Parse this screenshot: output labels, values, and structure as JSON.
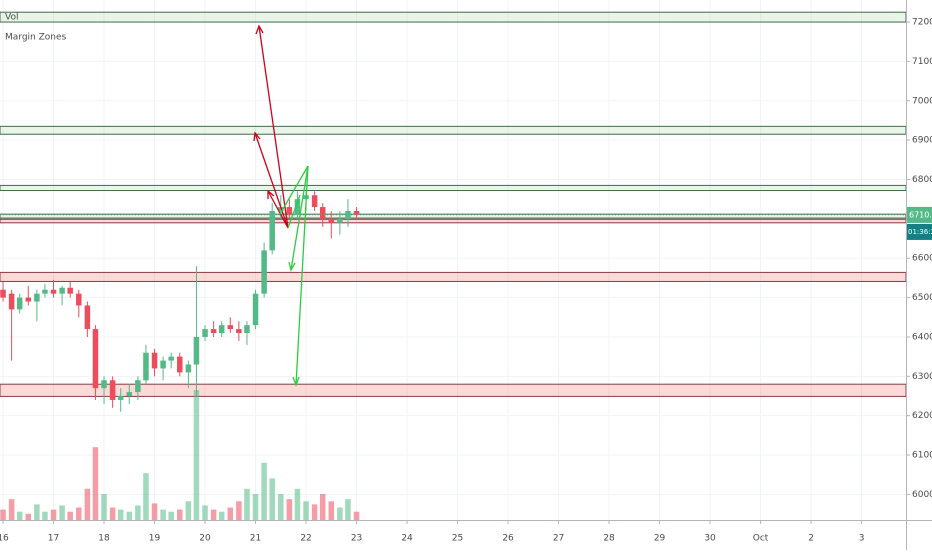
{
  "chart_data": {
    "type": "candlestick",
    "indicators": [
      "Vol",
      "Margin Zones"
    ],
    "x": [
      16,
      16.17,
      16.33,
      16.5,
      16.67,
      16.83,
      17,
      17.17,
      17.33,
      17.5,
      17.67,
      17.83,
      18,
      18.17,
      18.33,
      18.5,
      18.67,
      18.83,
      19,
      19.17,
      19.33,
      19.5,
      19.67,
      19.83,
      20,
      20.17,
      20.33,
      20.5,
      20.67,
      20.83,
      21,
      21.17,
      21.33,
      21.5,
      21.67,
      21.83,
      22,
      22.17,
      22.33,
      22.5,
      22.67,
      22.83,
      23
    ],
    "open": [
      6520,
      6510,
      6470,
      6500,
      6490,
      6510,
      6520,
      6510,
      6525,
      6510,
      6480,
      6420,
      6270,
      6290,
      6240,
      6250,
      6260,
      6290,
      6360,
      6320,
      6340,
      6350,
      6310,
      6330,
      6400,
      6420,
      6410,
      6430,
      6420,
      6410,
      6430,
      6510,
      6620,
      6720,
      6730,
      6710,
      6750,
      6760,
      6730,
      6700,
      6690,
      6700,
      6720
    ],
    "high": [
      6540,
      6520,
      6510,
      6530,
      6520,
      6535,
      6545,
      6530,
      6540,
      6520,
      6490,
      6430,
      6300,
      6300,
      6270,
      6280,
      6300,
      6380,
      6370,
      6350,
      6360,
      6360,
      6340,
      6580,
      6430,
      6440,
      6440,
      6450,
      6440,
      6440,
      6520,
      6640,
      6740,
      6760,
      6750,
      6770,
      6770,
      6770,
      6740,
      6720,
      6720,
      6750,
      6730
    ],
    "low": [
      6490,
      6340,
      6460,
      6480,
      6440,
      6500,
      6500,
      6480,
      6500,
      6450,
      6400,
      6240,
      6230,
      6220,
      6210,
      6230,
      6240,
      6280,
      6300,
      6290,
      6320,
      6300,
      6270,
      6250,
      6390,
      6400,
      6400,
      6410,
      6390,
      6380,
      6420,
      6500,
      6610,
      6700,
      6700,
      6700,
      6720,
      6720,
      6680,
      6650,
      6660,
      6680,
      6700
    ],
    "close": [
      6500,
      6470,
      6500,
      6490,
      6510,
      6520,
      6510,
      6525,
      6510,
      6480,
      6420,
      6270,
      6290,
      6240,
      6250,
      6260,
      6290,
      6360,
      6320,
      6340,
      6350,
      6310,
      6330,
      6400,
      6420,
      6410,
      6430,
      6420,
      6410,
      6430,
      6510,
      6620,
      6720,
      6730,
      6710,
      6750,
      6760,
      6730,
      6700,
      6690,
      6700,
      6720,
      6710
    ],
    "volume": [
      10,
      20,
      8,
      6,
      15,
      8,
      10,
      14,
      8,
      12,
      30,
      70,
      25,
      12,
      10,
      8,
      14,
      45,
      16,
      10,
      8,
      10,
      18,
      125,
      14,
      10,
      8,
      12,
      18,
      30,
      25,
      55,
      40,
      25,
      20,
      30,
      18,
      15,
      25,
      18,
      12,
      20,
      8
    ],
    "up_color": "#53b987",
    "down_color": "#eb4d5c",
    "zones": [
      {
        "low": 7200,
        "high": 7225,
        "color": "green"
      },
      {
        "low": 6915,
        "high": 6935,
        "color": "green"
      },
      {
        "low": 6772,
        "high": 6785,
        "color": "green"
      },
      {
        "low": 6702,
        "high": 6712,
        "color": "green"
      },
      {
        "low": 6690,
        "high": 6699,
        "color": "red"
      },
      {
        "low": 6541,
        "high": 6564,
        "color": "red"
      },
      {
        "low": 6249,
        "high": 6280,
        "color": "red"
      }
    ],
    "last_price": {
      "value": 6710,
      "label": "6710.0"
    },
    "countdown": "01:36:24",
    "xlim": [
      15.94,
      33.88
    ],
    "xticks": [
      16,
      17,
      18,
      19,
      20,
      21,
      22,
      23,
      24,
      25,
      26,
      27,
      28,
      29,
      30,
      {
        "value": 31,
        "label": "Oct"
      },
      {
        "value": 32,
        "label": "2"
      },
      {
        "value": 33,
        "label": "3"
      }
    ],
    "ylim": [
      5935,
      7256
    ],
    "yticks": [
      {
        "value": 6000,
        "label": "6000.0"
      },
      {
        "value": 6100,
        "label": "6100.0"
      },
      {
        "value": 6200,
        "label": "6200.0"
      },
      {
        "value": 6300,
        "label": "6300.0"
      },
      {
        "value": 6400,
        "label": "6400.0"
      },
      {
        "value": 6500,
        "label": "6500.0"
      },
      {
        "value": 6600,
        "label": "6600.0"
      },
      {
        "value": 6700,
        "label": "6700.0"
      },
      {
        "value": 6800,
        "label": "6800.0"
      },
      {
        "value": 6900,
        "label": "6900.0"
      },
      {
        "value": 7000,
        "label": "7000.0"
      },
      {
        "value": 7100,
        "label": "7100.0"
      },
      {
        "value": 7200,
        "label": "7200.0"
      }
    ],
    "grid": true
  }
}
